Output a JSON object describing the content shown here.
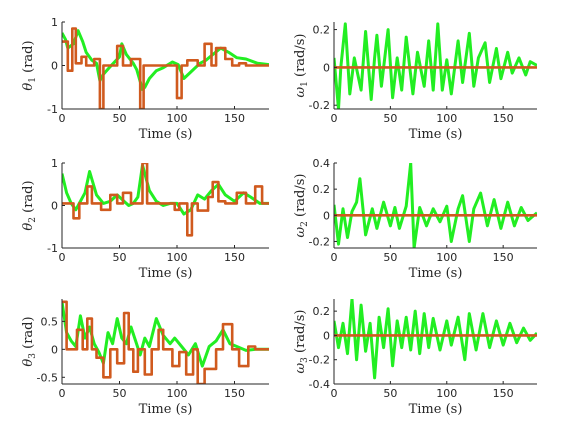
{
  "chart_data": [
    {
      "type": "line",
      "panel": "theta1",
      "ylabel_symbol": "θ",
      "ylabel_sub": "1",
      "ylabel_unit": " (rad)",
      "xlabel": "Time (s)",
      "xlim": [
        0,
        180
      ],
      "ylim": [
        -1,
        1
      ],
      "yticks": [
        -1,
        0,
        1
      ],
      "xticks": [
        0,
        50,
        100,
        150
      ],
      "grid": false,
      "series": [
        {
          "color": "#22ee22",
          "x": [
            0,
            3,
            5,
            10,
            14,
            18,
            21,
            26,
            30,
            33,
            36,
            41,
            50,
            52,
            56,
            62,
            65,
            70,
            72,
            76,
            82,
            88,
            96,
            101,
            106,
            112,
            120,
            125,
            131,
            138,
            145,
            152,
            160,
            170,
            180
          ],
          "y": [
            0.75,
            0.6,
            0.4,
            0.5,
            0.8,
            0.55,
            0.3,
            0.12,
            0.05,
            -0.35,
            -0.2,
            -0.05,
            0.2,
            0.5,
            0.25,
            0.05,
            -0.1,
            -0.55,
            -0.5,
            -0.3,
            -0.12,
            -0.05,
            0.08,
            0.02,
            -0.3,
            -0.15,
            0.05,
            0.12,
            0.25,
            0.4,
            0.3,
            0.18,
            0.15,
            0.05,
            0.02
          ]
        },
        {
          "color": "#d05a1e",
          "x": [
            0,
            5,
            5,
            9,
            9,
            12,
            12,
            17,
            17,
            21,
            21,
            28,
            28,
            33,
            33,
            36,
            36,
            48,
            48,
            53,
            53,
            60,
            60,
            68,
            68,
            71,
            71,
            100,
            100,
            104,
            104,
            109,
            109,
            118,
            118,
            124,
            124,
            130,
            130,
            134,
            134,
            142,
            142,
            148,
            148,
            154,
            154,
            160,
            160,
            180
          ],
          "y": [
            0.55,
            0.55,
            -0.12,
            -0.12,
            0.85,
            0.85,
            0.05,
            0.05,
            0.2,
            0.2,
            0.0,
            0.0,
            0.15,
            0.15,
            -1.0,
            -1.0,
            0.0,
            0.0,
            0.45,
            0.45,
            0.0,
            0.0,
            0.15,
            0.15,
            -1.0,
            -1.0,
            0.0,
            0.0,
            -0.75,
            -0.75,
            0.0,
            0.0,
            0.12,
            0.12,
            0.0,
            0.0,
            0.5,
            0.5,
            0.0,
            0.0,
            0.4,
            0.4,
            0.15,
            0.15,
            0.0,
            0.0,
            0.05,
            0.05,
            0.0,
            0.0
          ]
        }
      ]
    },
    {
      "type": "line",
      "panel": "omega1",
      "ylabel_symbol": "ω",
      "ylabel_sub": "1",
      "ylabel_unit": " (rad/s)",
      "xlabel": "Time (s)",
      "xlim": [
        0,
        180
      ],
      "ylim": [
        -0.22,
        0.24
      ],
      "yticks": [
        -0.2,
        0,
        0.2
      ],
      "xticks": [
        0,
        50,
        100,
        150
      ],
      "grid": false,
      "series": [
        {
          "color": "#22ee22",
          "x": [
            0,
            4,
            6,
            10,
            14,
            18,
            24,
            28,
            33,
            36,
            38,
            42,
            48,
            52,
            56,
            60,
            64,
            70,
            74,
            80,
            84,
            88,
            92,
            96,
            100,
            104,
            110,
            114,
            120,
            124,
            128,
            134,
            138,
            144,
            148,
            154,
            158,
            164,
            170,
            174,
            180
          ],
          "y": [
            0.05,
            -0.22,
            0.0,
            0.23,
            -0.14,
            0.05,
            -0.12,
            0.19,
            -0.17,
            0.05,
            0.17,
            -0.1,
            0.2,
            -0.16,
            0.05,
            -0.12,
            0.16,
            -0.14,
            0.08,
            -0.1,
            0.14,
            -0.12,
            0.23,
            -0.12,
            0.04,
            -0.14,
            0.14,
            -0.08,
            0.18,
            -0.1,
            0.05,
            0.13,
            -0.08,
            0.1,
            -0.06,
            0.08,
            -0.03,
            0.05,
            -0.04,
            0.03,
            0.01
          ]
        },
        {
          "color": "#d05a1e",
          "x": [
            0,
            180
          ],
          "y": [
            0.0,
            0.0
          ]
        }
      ]
    },
    {
      "type": "line",
      "panel": "theta2",
      "ylabel_symbol": "θ",
      "ylabel_sub": "2",
      "ylabel_unit": " (rad)",
      "xlabel": "Time (s)",
      "xlim": [
        0,
        180
      ],
      "ylim": [
        -1,
        1
      ],
      "yticks": [
        -1,
        0,
        1
      ],
      "xticks": [
        0,
        50,
        100,
        150
      ],
      "grid": false,
      "series": [
        {
          "color": "#22ee22",
          "x": [
            0,
            4,
            8,
            12,
            16,
            20,
            24,
            30,
            36,
            42,
            48,
            54,
            58,
            62,
            66,
            70,
            76,
            82,
            88,
            94,
            100,
            106,
            112,
            118,
            124,
            130,
            136,
            142,
            150,
            158,
            164,
            172,
            180
          ],
          "y": [
            0.75,
            0.3,
            0.05,
            -0.1,
            0.1,
            0.3,
            0.8,
            0.25,
            0.05,
            0.1,
            0.25,
            0.1,
            0.0,
            0.05,
            0.2,
            0.95,
            0.35,
            0.1,
            0.0,
            0.05,
            0.05,
            -0.2,
            -0.1,
            0.25,
            0.15,
            0.35,
            0.5,
            0.25,
            0.1,
            0.3,
            0.2,
            0.05,
            0.05
          ]
        },
        {
          "color": "#d05a1e",
          "x": [
            0,
            10,
            10,
            15,
            15,
            22,
            22,
            26,
            26,
            34,
            34,
            42,
            42,
            48,
            48,
            53,
            53,
            60,
            60,
            70,
            70,
            74,
            74,
            98,
            98,
            102,
            102,
            109,
            109,
            113,
            113,
            118,
            118,
            127,
            127,
            131,
            131,
            136,
            136,
            142,
            142,
            152,
            152,
            160,
            160,
            168,
            168,
            174,
            174,
            180
          ],
          "y": [
            0.05,
            0.05,
            -0.3,
            -0.3,
            0.05,
            0.05,
            0.45,
            0.45,
            0.05,
            0.05,
            -0.1,
            -0.1,
            0.25,
            0.25,
            0.05,
            0.05,
            0.3,
            0.3,
            0.05,
            0.05,
            1.0,
            1.0,
            0.05,
            0.05,
            -0.1,
            -0.1,
            0.05,
            0.05,
            -0.7,
            -0.7,
            0.05,
            0.05,
            -0.12,
            -0.12,
            0.2,
            0.2,
            0.55,
            0.55,
            0.1,
            0.1,
            0.05,
            0.05,
            0.3,
            0.3,
            0.05,
            0.05,
            0.45,
            0.45,
            0.05,
            0.05
          ]
        }
      ]
    },
    {
      "type": "line",
      "panel": "omega2",
      "ylabel_symbol": "ω",
      "ylabel_sub": "2",
      "ylabel_unit": " (rad/s)",
      "xlabel": "Time (s)",
      "xlim": [
        0,
        180
      ],
      "ylim": [
        -0.25,
        0.4
      ],
      "yticks": [
        -0.2,
        0,
        0.2,
        0.4
      ],
      "xticks": [
        0,
        50,
        100,
        150
      ],
      "grid": false,
      "series": [
        {
          "color": "#22ee22",
          "x": [
            0,
            4,
            8,
            12,
            16,
            20,
            23,
            28,
            34,
            38,
            44,
            50,
            54,
            58,
            64,
            68,
            71,
            76,
            82,
            88,
            94,
            100,
            104,
            110,
            114,
            120,
            124,
            130,
            136,
            142,
            148,
            154,
            160,
            166,
            172,
            180
          ],
          "y": [
            0.08,
            -0.22,
            0.05,
            -0.17,
            0.03,
            0.1,
            0.28,
            -0.15,
            0.05,
            -0.1,
            0.1,
            -0.08,
            0.06,
            -0.1,
            0.07,
            0.4,
            -0.25,
            0.06,
            -0.08,
            0.05,
            -0.05,
            0.07,
            -0.2,
            0.05,
            0.15,
            -0.2,
            0.05,
            0.17,
            -0.08,
            0.12,
            -0.1,
            0.1,
            -0.08,
            0.06,
            -0.04,
            0.02
          ]
        },
        {
          "color": "#d05a1e",
          "x": [
            0,
            180
          ],
          "y": [
            0.0,
            0.0
          ]
        }
      ]
    },
    {
      "type": "line",
      "panel": "theta3",
      "ylabel_symbol": "θ",
      "ylabel_sub": "3",
      "ylabel_unit": " (rad)",
      "xlabel": "Time (s)",
      "xlim": [
        0,
        180
      ],
      "ylim": [
        -0.62,
        0.9
      ],
      "yticks": [
        -0.5,
        0,
        0.5
      ],
      "xticks": [
        0,
        50,
        100,
        150
      ],
      "grid": false,
      "series": [
        {
          "color": "#22ee22",
          "x": [
            0,
            4,
            8,
            12,
            16,
            20,
            24,
            28,
            32,
            36,
            40,
            44,
            48,
            52,
            56,
            60,
            64,
            68,
            72,
            76,
            82,
            88,
            94,
            98,
            104,
            110,
            116,
            122,
            128,
            134,
            140,
            146,
            152,
            160,
            168,
            180
          ],
          "y": [
            0.85,
            0.3,
            0.15,
            0.05,
            0.6,
            0.2,
            0.4,
            0.1,
            -0.05,
            -0.25,
            0.3,
            0.1,
            0.55,
            0.2,
            0.1,
            0.4,
            0.15,
            -0.1,
            0.2,
            0.05,
            0.55,
            0.25,
            0.1,
            0.2,
            0.05,
            -0.1,
            0.1,
            -0.3,
            0.05,
            0.15,
            0.35,
            0.1,
            0.05,
            -0.02,
            0.0,
            0.0
          ]
        },
        {
          "color": "#d05a1e",
          "x": [
            0,
            4,
            4,
            13,
            13,
            18,
            18,
            22,
            22,
            26,
            26,
            30,
            30,
            36,
            36,
            42,
            42,
            48,
            48,
            54,
            54,
            58,
            58,
            62,
            62,
            66,
            66,
            72,
            72,
            78,
            78,
            84,
            84,
            88,
            88,
            96,
            96,
            102,
            102,
            108,
            108,
            114,
            114,
            118,
            118,
            124,
            124,
            134,
            134,
            140,
            140,
            148,
            148,
            154,
            154,
            162,
            162,
            168,
            168,
            180
          ],
          "y": [
            0.85,
            0.85,
            0.0,
            0.0,
            0.35,
            0.35,
            0.0,
            0.0,
            0.55,
            0.55,
            0.0,
            0.0,
            -0.15,
            -0.15,
            -0.5,
            -0.5,
            0.0,
            0.0,
            -0.25,
            -0.25,
            0.65,
            0.65,
            0.0,
            0.0,
            -0.4,
            -0.4,
            0.0,
            0.0,
            -0.45,
            -0.45,
            0.0,
            0.0,
            0.35,
            0.35,
            0.0,
            0.0,
            -0.3,
            -0.3,
            -0.05,
            -0.05,
            -0.45,
            -0.45,
            0.0,
            0.0,
            -0.62,
            -0.62,
            -0.35,
            -0.35,
            0.0,
            0.0,
            0.45,
            0.45,
            0.0,
            0.0,
            -0.3,
            -0.3,
            0.05,
            0.05,
            0.0,
            0.0
          ]
        }
      ]
    },
    {
      "type": "line",
      "panel": "omega3",
      "ylabel_symbol": "ω",
      "ylabel_sub": "3",
      "ylabel_unit": " (rad/s)",
      "xlabel": "Time (s)",
      "xlim": [
        0,
        180
      ],
      "ylim": [
        -0.4,
        0.3
      ],
      "yticks": [
        -0.4,
        -0.2,
        0,
        0.2
      ],
      "xticks": [
        0,
        50,
        100,
        150
      ],
      "grid": false,
      "series": [
        {
          "color": "#22ee22",
          "x": [
            0,
            4,
            8,
            12,
            16,
            20,
            24,
            28,
            32,
            36,
            40,
            44,
            48,
            52,
            56,
            60,
            64,
            68,
            72,
            76,
            80,
            84,
            88,
            94,
            100,
            104,
            110,
            116,
            120,
            126,
            132,
            138,
            144,
            150,
            156,
            162,
            168,
            174,
            180
          ],
          "y": [
            0.12,
            -0.1,
            0.1,
            -0.15,
            0.3,
            -0.2,
            0.25,
            -0.13,
            0.1,
            -0.35,
            0.15,
            -0.1,
            0.22,
            -0.25,
            0.12,
            -0.1,
            0.15,
            -0.12,
            0.2,
            -0.15,
            0.18,
            -0.1,
            0.14,
            -0.12,
            0.12,
            -0.08,
            0.15,
            -0.2,
            0.18,
            -0.12,
            0.18,
            -0.1,
            0.12,
            -0.08,
            0.1,
            -0.06,
            0.06,
            -0.04,
            0.02
          ]
        },
        {
          "color": "#d05a1e",
          "x": [
            0,
            180
          ],
          "y": [
            0.0,
            0.0
          ]
        }
      ]
    }
  ]
}
